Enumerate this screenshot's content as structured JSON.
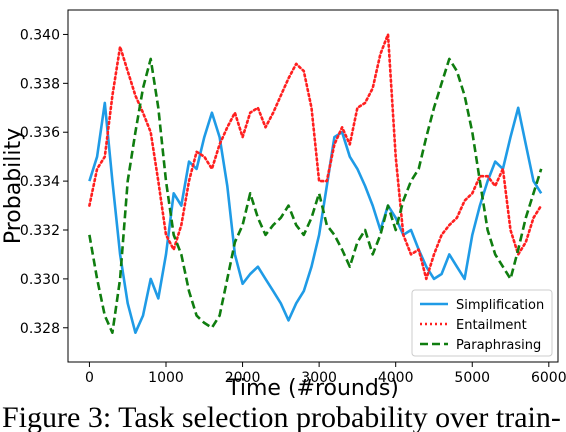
{
  "chart_data": {
    "type": "line",
    "title": "",
    "xlabel": "Time (#rounds)",
    "ylabel": "Probability",
    "xlim": [
      -280,
      6120
    ],
    "ylim": [
      0.3266,
      0.341
    ],
    "xticks": [
      0,
      1000,
      2000,
      3000,
      4000,
      5000,
      6000
    ],
    "yticks": [
      0.328,
      0.33,
      0.332,
      0.334,
      0.336,
      0.338,
      0.34
    ],
    "ytick_labels": [
      "0.328",
      "0.330",
      "0.332",
      "0.334",
      "0.336",
      "0.338",
      "0.340"
    ],
    "grid": false,
    "legend_position": "lower-right",
    "series": [
      {
        "name": "Simplification",
        "color": "#1f9be6",
        "style": "solid",
        "x": [
          0,
          100,
          200,
          300,
          400,
          500,
          600,
          700,
          800,
          900,
          1000,
          1100,
          1200,
          1300,
          1400,
          1500,
          1600,
          1700,
          1800,
          1900,
          2000,
          2100,
          2200,
          2300,
          2400,
          2500,
          2600,
          2700,
          2800,
          2900,
          3000,
          3100,
          3200,
          3300,
          3400,
          3500,
          3600,
          3700,
          3800,
          3900,
          4000,
          4100,
          4200,
          4300,
          4400,
          4500,
          4600,
          4700,
          4800,
          4900,
          5000,
          5100,
          5200,
          5300,
          5400,
          5500,
          5600,
          5700,
          5800,
          5900
        ],
        "y": [
          0.334,
          0.335,
          0.3372,
          0.334,
          0.331,
          0.329,
          0.3278,
          0.3285,
          0.33,
          0.3292,
          0.331,
          0.3335,
          0.333,
          0.3348,
          0.3345,
          0.3358,
          0.3368,
          0.3358,
          0.3338,
          0.331,
          0.3298,
          0.3302,
          0.3305,
          0.33,
          0.3295,
          0.329,
          0.3283,
          0.329,
          0.3295,
          0.3305,
          0.3318,
          0.3338,
          0.3358,
          0.336,
          0.335,
          0.3345,
          0.3338,
          0.333,
          0.332,
          0.333,
          0.3325,
          0.3318,
          0.332,
          0.3312,
          0.3305,
          0.33,
          0.3302,
          0.331,
          0.3305,
          0.33,
          0.3318,
          0.333,
          0.334,
          0.3348,
          0.3345,
          0.3358,
          0.337,
          0.3355,
          0.334,
          0.3335
        ]
      },
      {
        "name": "Entailment",
        "color": "#ff1f1f",
        "style": "dotted",
        "x": [
          0,
          100,
          200,
          300,
          400,
          500,
          600,
          700,
          800,
          900,
          1000,
          1100,
          1200,
          1300,
          1400,
          1500,
          1600,
          1700,
          1800,
          1900,
          2000,
          2100,
          2200,
          2300,
          2400,
          2500,
          2600,
          2700,
          2800,
          2900,
          3000,
          3100,
          3200,
          3300,
          3400,
          3500,
          3600,
          3700,
          3800,
          3900,
          4000,
          4100,
          4200,
          4300,
          4400,
          4500,
          4600,
          4700,
          4800,
          4900,
          5000,
          5100,
          5200,
          5300,
          5400,
          5500,
          5600,
          5700,
          5800,
          5900
        ],
        "y": [
          0.333,
          0.3345,
          0.335,
          0.3375,
          0.3395,
          0.3385,
          0.3375,
          0.3368,
          0.336,
          0.334,
          0.3318,
          0.3312,
          0.3322,
          0.334,
          0.3352,
          0.335,
          0.3345,
          0.3355,
          0.3362,
          0.3368,
          0.3358,
          0.3368,
          0.337,
          0.3362,
          0.3368,
          0.3375,
          0.3382,
          0.3388,
          0.3385,
          0.337,
          0.334,
          0.334,
          0.3355,
          0.3362,
          0.3355,
          0.337,
          0.3372,
          0.3378,
          0.3392,
          0.34,
          0.335,
          0.3318,
          0.331,
          0.3312,
          0.33,
          0.331,
          0.3318,
          0.3322,
          0.3325,
          0.3332,
          0.3335,
          0.3342,
          0.3342,
          0.3338,
          0.3345,
          0.332,
          0.331,
          0.3315,
          0.3325,
          0.333
        ]
      },
      {
        "name": "Paraphrasing",
        "color": "#0f7d0f",
        "style": "dashed",
        "x": [
          0,
          100,
          200,
          300,
          400,
          500,
          600,
          700,
          800,
          900,
          1000,
          1100,
          1200,
          1300,
          1400,
          1500,
          1600,
          1700,
          1800,
          1900,
          2000,
          2100,
          2200,
          2300,
          2400,
          2500,
          2600,
          2700,
          2800,
          2900,
          3000,
          3100,
          3200,
          3300,
          3400,
          3500,
          3600,
          3700,
          3800,
          3900,
          4000,
          4100,
          4200,
          4300,
          4400,
          4500,
          4600,
          4700,
          4800,
          4900,
          5000,
          5100,
          5200,
          5300,
          5400,
          5500,
          5600,
          5700,
          5800,
          5900
        ],
        "y": [
          0.3318,
          0.33,
          0.3285,
          0.3278,
          0.33,
          0.334,
          0.336,
          0.3378,
          0.339,
          0.337,
          0.334,
          0.3318,
          0.331,
          0.3295,
          0.3285,
          0.3282,
          0.328,
          0.3285,
          0.33,
          0.3315,
          0.3322,
          0.3335,
          0.3325,
          0.3318,
          0.3322,
          0.3325,
          0.333,
          0.3322,
          0.3318,
          0.3325,
          0.3335,
          0.3322,
          0.3318,
          0.3312,
          0.3305,
          0.3315,
          0.332,
          0.331,
          0.3318,
          0.333,
          0.332,
          0.3332,
          0.334,
          0.3345,
          0.3358,
          0.337,
          0.338,
          0.339,
          0.3385,
          0.3375,
          0.336,
          0.334,
          0.332,
          0.331,
          0.3305,
          0.33,
          0.3312,
          0.3325,
          0.3335,
          0.3345
        ]
      }
    ]
  },
  "caption": "Figure 3: Task selection probability over train-"
}
